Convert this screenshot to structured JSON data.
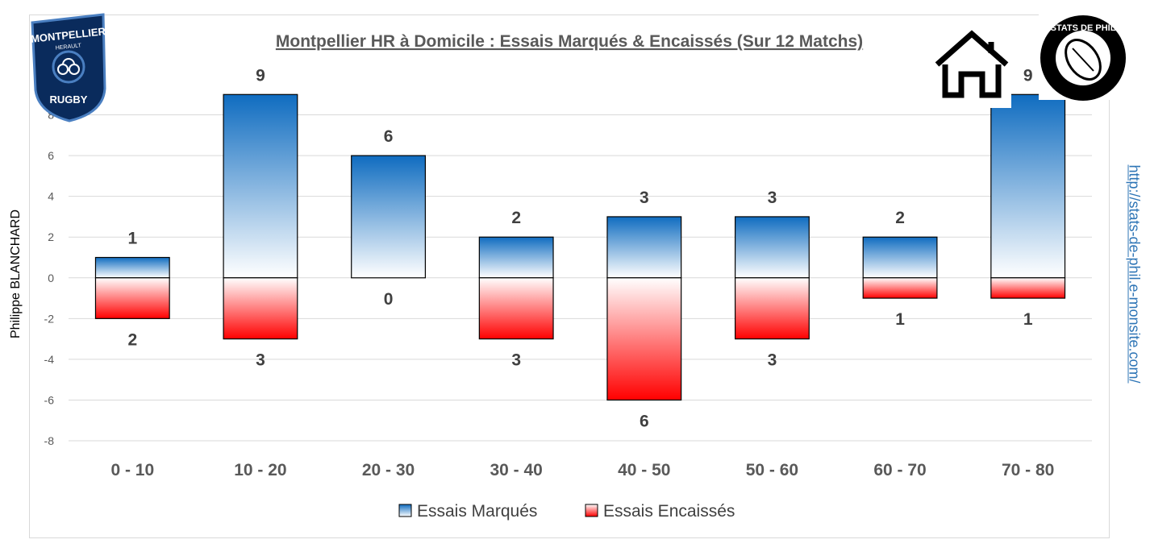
{
  "side": {
    "author": "Philippe BLANCHARD",
    "url": "http://stats-de-phil.e-monsite.com/"
  },
  "logos": {
    "left": {
      "name": "MONTPELLIER",
      "sub": "HERAULT",
      "bottom": "RUGBY"
    },
    "right": {
      "text": "STATS DE PHIL"
    },
    "home_icon": "house-icon"
  },
  "colors": {
    "blue": "#0f6cc0",
    "red": "#ff0000",
    "axis_text": "#595959",
    "label_text": "#404040",
    "grid": "#d9d9d9"
  },
  "chart_data": {
    "type": "bar",
    "title": "Montpellier HR à Domicile : Essais Marqués & Encaissés (Sur 12 Matchs)",
    "categories": [
      "0 - 10",
      "10 - 20",
      "20 - 30",
      "30 - 40",
      "40 - 50",
      "50 - 60",
      "60 - 70",
      "70 - 80"
    ],
    "series": [
      {
        "name": "Essais Marqués",
        "values": [
          1,
          9,
          6,
          2,
          3,
          3,
          2,
          9
        ],
        "labels": [
          "1",
          "9",
          "6",
          "2",
          "3",
          "3",
          "2",
          "9"
        ]
      },
      {
        "name": "Essais Encaissés",
        "values": [
          -2,
          -3,
          0,
          -3,
          -6,
          -3,
          -1,
          -1
        ],
        "labels": [
          "2",
          "3",
          "0",
          "3",
          "6",
          "3",
          "1",
          "1"
        ]
      }
    ],
    "yticks": [
      -8,
      -6,
      -4,
      -2,
      0,
      2,
      4,
      6,
      8
    ],
    "ylim": [
      -8,
      10
    ],
    "grid": true,
    "legend": "bottom"
  }
}
